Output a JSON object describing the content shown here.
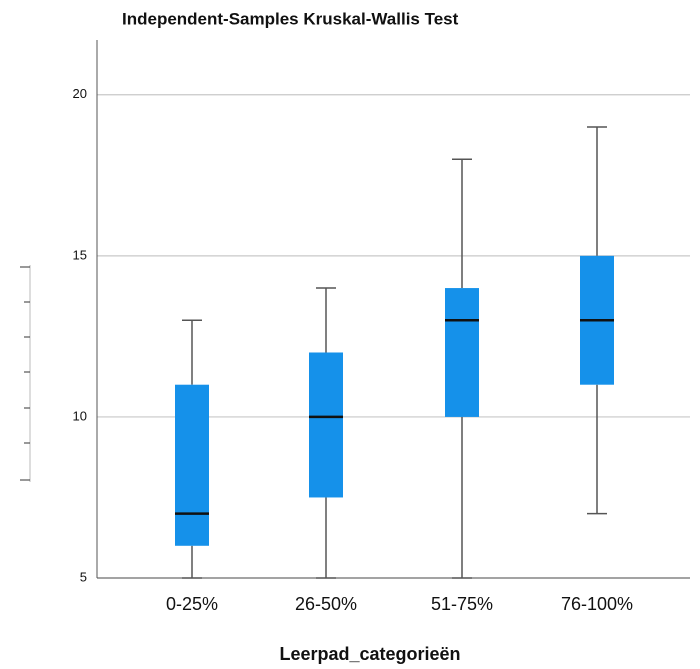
{
  "chart_data": {
    "type": "box",
    "title": "Independent-Samples Kruskal-Wallis Test",
    "x_label": "Leerpad_categorieën",
    "categories": [
      "0-25%",
      "26-50%",
      "51-75%",
      "76-100%"
    ],
    "min": [
      5,
      5,
      5,
      7
    ],
    "q1": [
      6,
      7.5,
      10,
      11
    ],
    "median": [
      7,
      10,
      13,
      13
    ],
    "q3": [
      11,
      12,
      14,
      15
    ],
    "max": [
      13,
      14,
      18,
      19
    ],
    "color": "#1591ea",
    "ylim": [
      5,
      21.7
    ],
    "yticks": [
      5,
      10,
      15,
      20
    ],
    "grid": true
  }
}
